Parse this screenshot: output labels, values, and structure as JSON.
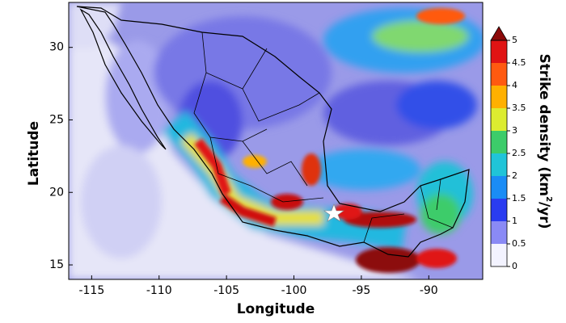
{
  "map": {
    "x_label": "Longitude",
    "y_label": "Latitude",
    "xlim": [
      -116.7,
      -86
    ],
    "ylim": [
      14,
      33.1
    ],
    "xticks": [
      -115,
      -110,
      -105,
      -100,
      -95,
      -90
    ],
    "yticks": [
      15,
      20,
      25,
      30
    ],
    "colorbar": {
      "label": [
        "Strike density (km",
        "2",
        "/yr)"
      ],
      "ticks": [
        0,
        0.5,
        1,
        1.5,
        2,
        2.5,
        3,
        3.5,
        4,
        4.5,
        5
      ],
      "colors": [
        "#f3f3ff",
        "#8a8af5",
        "#2a3cf0",
        "#1a8cf5",
        "#20c4d8",
        "#3ccc6a",
        "#dcec30",
        "#ffb000",
        "#ff5a10",
        "#e01414"
      ],
      "over_color": "#8c0a0a"
    }
  }
}
